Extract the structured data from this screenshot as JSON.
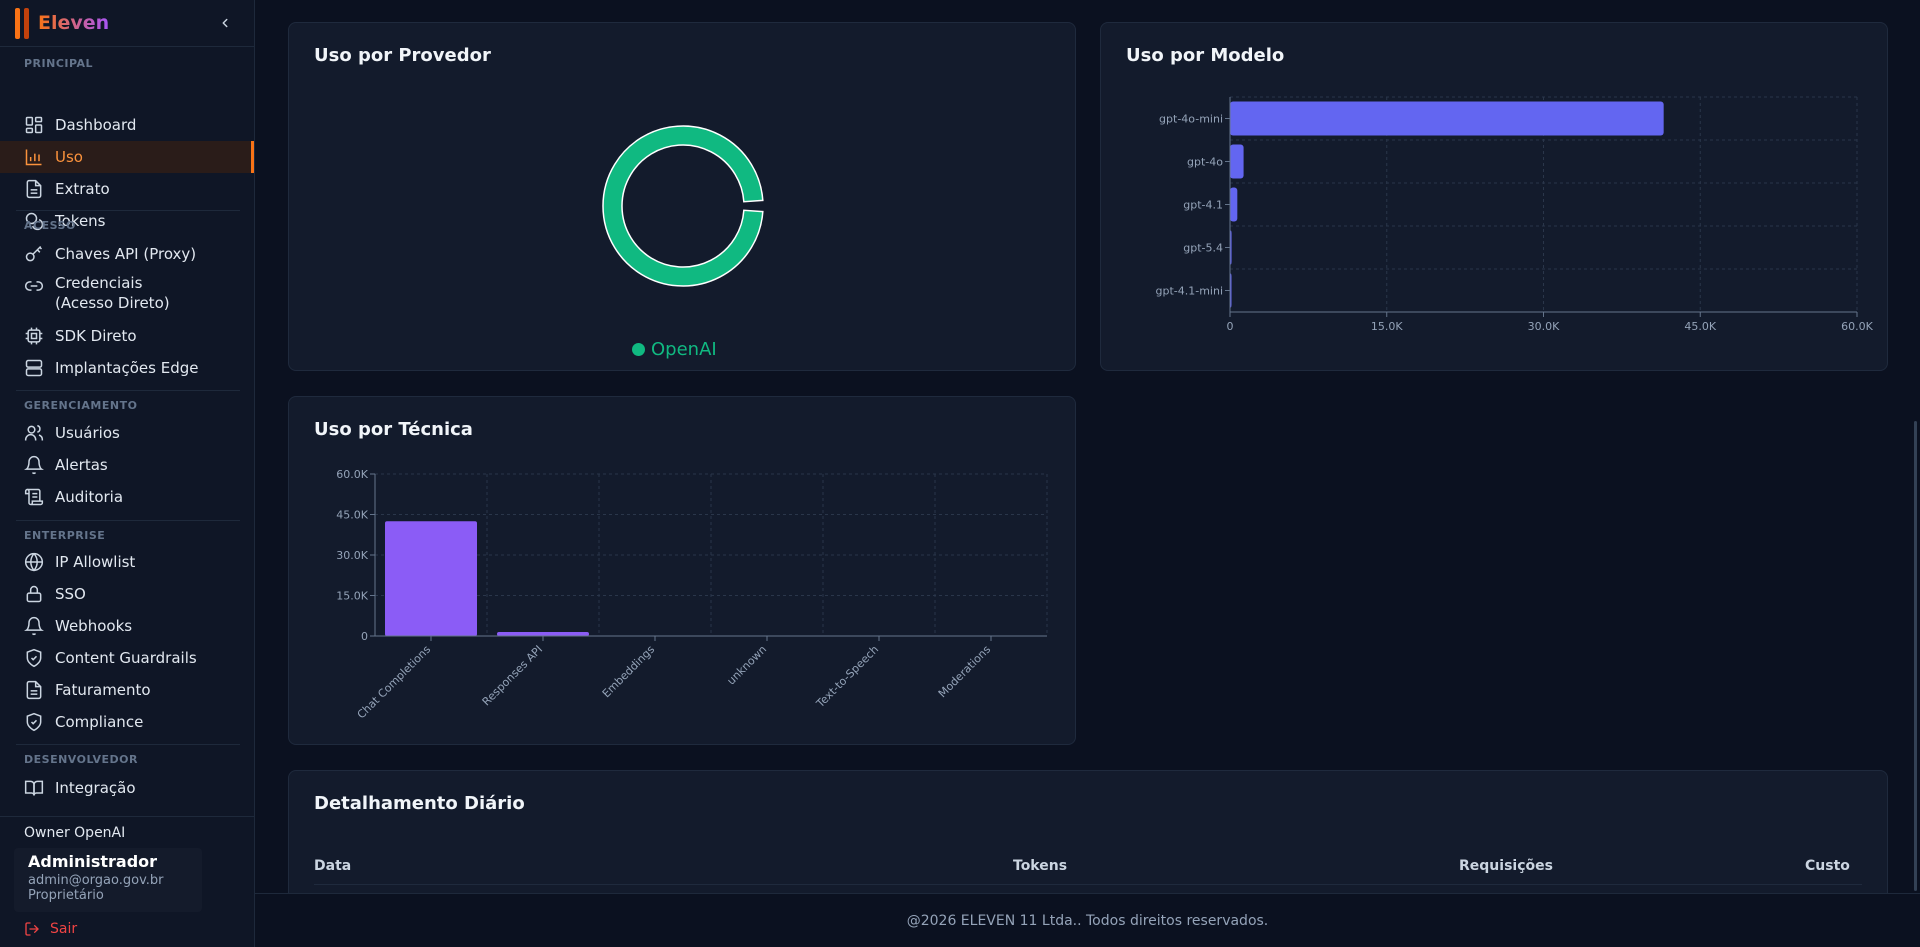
{
  "brand": {
    "name": "Eleven"
  },
  "sidebar": {
    "sections": {
      "principal": "PRINCIPAL",
      "acesso": "ACESSO",
      "gerenciamento": "GERENCIAMENTO",
      "enterprise": "ENTERPRISE",
      "desenvolvedor": "DESENVOLVEDOR"
    },
    "items": {
      "dashboard": "Dashboard",
      "uso": "Uso",
      "extrato": "Extrato",
      "tokens": "Tokens",
      "chaves": "Chaves API (Proxy)",
      "credenciais": "Credenciais (Acesso Direto)",
      "sdk": "SDK Direto",
      "implantacoes": "Implantações Edge",
      "usuarios": "Usuários",
      "alertas": "Alertas",
      "auditoria": "Auditoria",
      "ip": "IP Allowlist",
      "sso": "SSO",
      "webhooks": "Webhooks",
      "guardrails": "Content Guardrails",
      "faturamento": "Faturamento",
      "compliance": "Compliance",
      "integracao": "Integração"
    },
    "active_item": "uso"
  },
  "user": {
    "owner": "Owner OpenAI",
    "name": "Administrador",
    "email": "admin@orgao.gov.br",
    "role": "Proprietário",
    "logout": "Sair"
  },
  "cards": {
    "provider_title": "Uso por Provedor",
    "model_title": "Uso por Modelo",
    "technique_title": "Uso por Técnica",
    "daily_title": "Detalhamento Diário"
  },
  "table": {
    "columns": {
      "data": "Data",
      "tokens": "Tokens",
      "requisicoes": "Requisições",
      "custo": "Custo"
    }
  },
  "footer": {
    "text": "@2026 ELEVEN 11 Ltda.. Todos direitos reservados."
  },
  "colors": {
    "accent": "#f97316",
    "openai": "#10b981",
    "model_bar": "#6366f1",
    "technique_bar": "#8b5cf6"
  },
  "chart_data": [
    {
      "type": "pie",
      "title": "Uso por Provedor",
      "labels": [
        "OpenAI"
      ],
      "values": [
        100
      ]
    },
    {
      "type": "bar",
      "orientation": "horizontal",
      "title": "Uso por Modelo",
      "categories": [
        "gpt-4o-mini",
        "gpt-4o",
        "gpt-4.1",
        "gpt-5.4",
        "gpt-4.1-mini"
      ],
      "values": [
        41500,
        1300,
        700,
        150,
        50
      ],
      "xlim": [
        0,
        60000
      ],
      "ticks": [
        "0",
        "15.0K",
        "30.0K",
        "45.0K",
        "60.0K"
      ],
      "tick_values": [
        0,
        15000,
        30000,
        45000,
        60000
      ],
      "grid": true
    },
    {
      "type": "bar",
      "title": "Uso por Técnica",
      "categories": [
        "Chat Completions",
        "Responses API",
        "Embeddings",
        "unknown",
        "Text-to-Speech",
        "Moderations"
      ],
      "values": [
        42500,
        1500,
        0,
        0,
        0,
        0
      ],
      "ylim": [
        0,
        60000
      ],
      "ticks": [
        "0",
        "15.0K",
        "30.0K",
        "45.0K",
        "60.0K"
      ],
      "tick_values": [
        0,
        15000,
        30000,
        45000,
        60000
      ],
      "grid": true
    }
  ]
}
